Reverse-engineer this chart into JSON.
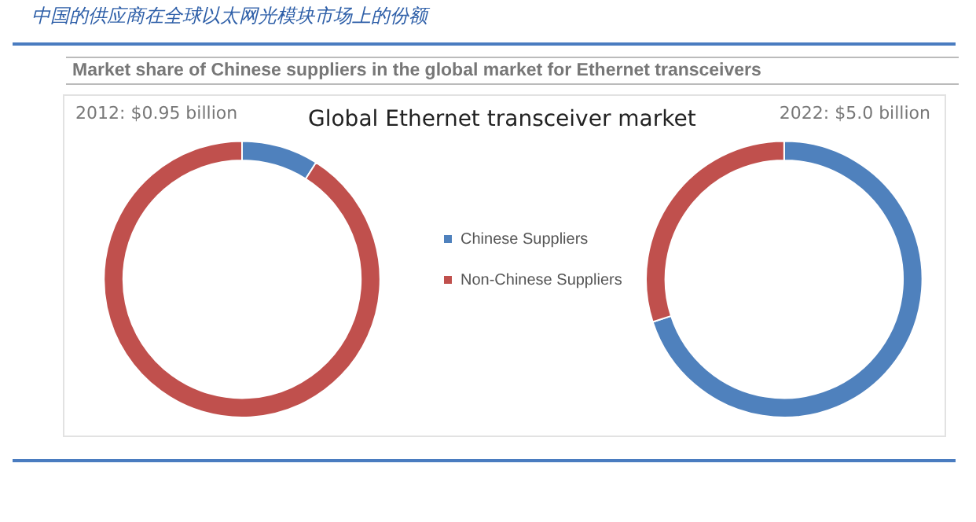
{
  "chart_data": [
    {
      "type": "donut",
      "title": "2012: $0.95 billion",
      "categories": [
        null,
        null
      ],
      "values": [
        9,
        91
      ],
      "colors": [
        "#4f81bd",
        "#c0504d"
      ],
      "legend": false,
      "annotations": [
        "中国的供应商在全球以太网光模块市场上的份额",
        "Market share of Chinese suppliers in the global market for Ethernet transceivers",
        "Global Ethernet transceiver market"
      ]
    },
    {
      "type": "donut",
      "title": "2022: $5.0 billion",
      "categories": [
        "Chinese Suppliers",
        "Non-Chinese Suppliers"
      ],
      "values": [
        70,
        30
      ],
      "colors": [
        "#4f81bd",
        "#c0504d"
      ],
      "legend": "left"
    }
  ]
}
